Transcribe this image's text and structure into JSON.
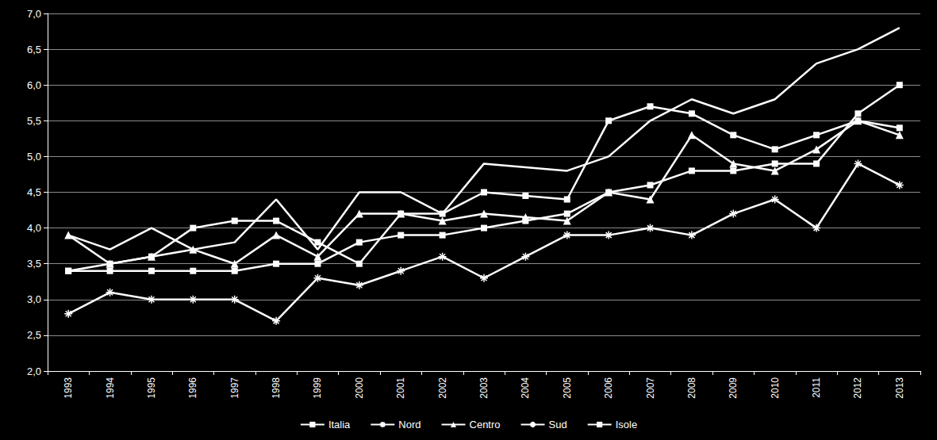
{
  "chart_data": {
    "type": "line",
    "categories": [
      "1993",
      "1994",
      "1995",
      "1996",
      "1997",
      "1998",
      "1999",
      "2000",
      "2001",
      "2002",
      "2003",
      "2004",
      "2005",
      "2006",
      "2007",
      "2008",
      "2009",
      "2010",
      "2011",
      "2012",
      "2013"
    ],
    "series": [
      {
        "name": "Italia",
        "color": "#ffffff",
        "marker": "square",
        "values": [
          3.4,
          3.4,
          3.4,
          3.4,
          3.4,
          3.5,
          3.5,
          3.8,
          3.9,
          3.9,
          4.0,
          4.1,
          4.2,
          4.5,
          4.6,
          4.8,
          4.8,
          4.9,
          4.9,
          5.6,
          6.0
        ]
      },
      {
        "name": "Nord",
        "color": "#ffffff",
        "marker": "asterisk",
        "values": [
          2.8,
          3.1,
          3.0,
          3.0,
          3.0,
          2.7,
          3.3,
          3.2,
          3.4,
          3.6,
          3.3,
          3.6,
          3.9,
          3.9,
          4.0,
          3.9,
          4.2,
          4.4,
          4.0,
          4.9,
          4.6
        ]
      },
      {
        "name": "Centro",
        "color": "#ffffff",
        "marker": "triangle",
        "values": [
          3.9,
          3.5,
          3.6,
          3.7,
          3.5,
          3.9,
          3.6,
          4.2,
          4.2,
          4.1,
          4.2,
          4.15,
          4.1,
          4.5,
          4.4,
          5.3,
          4.9,
          4.8,
          5.1,
          5.5,
          5.3
        ]
      },
      {
        "name": "Sud",
        "color": "#ffffff",
        "marker": "none",
        "values": [
          3.9,
          3.7,
          4.0,
          3.7,
          3.8,
          4.4,
          3.7,
          4.5,
          4.5,
          4.2,
          4.9,
          4.85,
          4.8,
          5.0,
          5.5,
          5.8,
          5.6,
          5.8,
          6.3,
          6.5,
          6.8
        ]
      },
      {
        "name": "Isole",
        "color": "#ffffff",
        "marker": "square",
        "values": [
          3.4,
          3.5,
          3.6,
          4.0,
          4.1,
          4.1,
          3.8,
          3.5,
          4.2,
          4.2,
          4.5,
          4.45,
          4.4,
          5.5,
          5.7,
          5.6,
          5.3,
          5.1,
          5.3,
          5.5,
          5.4
        ]
      }
    ],
    "ylim": [
      2.0,
      7.0
    ],
    "yticks": [
      {
        "value": 2.0,
        "label": "2,0"
      },
      {
        "value": 2.5,
        "label": "2,5"
      },
      {
        "value": 3.0,
        "label": "3,0"
      },
      {
        "value": 3.5,
        "label": "3,5"
      },
      {
        "value": 4.0,
        "label": "4,0"
      },
      {
        "value": 4.5,
        "label": "4,5"
      },
      {
        "value": 5.0,
        "label": "5,0"
      },
      {
        "value": 5.5,
        "label": "5,5"
      },
      {
        "value": 6.0,
        "label": "6,0"
      },
      {
        "value": 6.5,
        "label": "6,5"
      },
      {
        "value": 7.0,
        "label": "7,0"
      }
    ],
    "grid": true,
    "legend": "bottom"
  }
}
